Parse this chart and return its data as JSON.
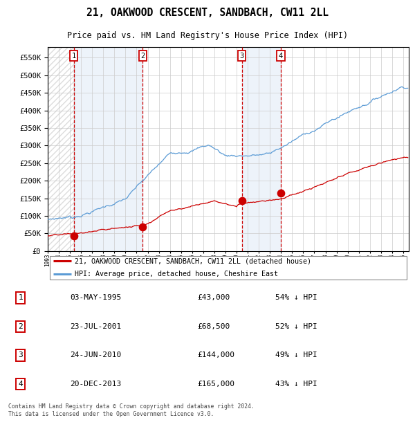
{
  "title": "21, OAKWOOD CRESCENT, SANDBACH, CW11 2LL",
  "subtitle": "Price paid vs. HM Land Registry's House Price Index (HPI)",
  "footnote": "Contains HM Land Registry data © Crown copyright and database right 2024.\nThis data is licensed under the Open Government Licence v3.0.",
  "legend_line1": "21, OAKWOOD CRESCENT, SANDBACH, CW11 2LL (detached house)",
  "legend_line2": "HPI: Average price, detached house, Cheshire East",
  "transactions": [
    {
      "num": 1,
      "date": "03-MAY-1995",
      "year": 1995.34,
      "price": 43000,
      "pct": "54% ↓ HPI"
    },
    {
      "num": 2,
      "date": "23-JUL-2001",
      "year": 2001.56,
      "price": 68500,
      "pct": "52% ↓ HPI"
    },
    {
      "num": 3,
      "date": "24-JUN-2010",
      "year": 2010.48,
      "price": 144000,
      "pct": "49% ↓ HPI"
    },
    {
      "num": 4,
      "date": "20-DEC-2013",
      "year": 2013.97,
      "price": 165000,
      "pct": "43% ↓ HPI"
    }
  ],
  "ylim": [
    0,
    580000
  ],
  "xlim_start": 1993.0,
  "xlim_end": 2025.5,
  "bg_color": "#ffffff",
  "plot_bg_color": "#ffffff",
  "grid_color": "#cccccc",
  "hpi_line_color": "#5b9bd5",
  "price_line_color": "#cc0000",
  "dashed_line_color": "#cc0000",
  "shade_color": "#dce9f7",
  "hatch_color": "#cccccc",
  "transaction_dot_color": "#cc0000",
  "box_edge_color": "#cc0000"
}
